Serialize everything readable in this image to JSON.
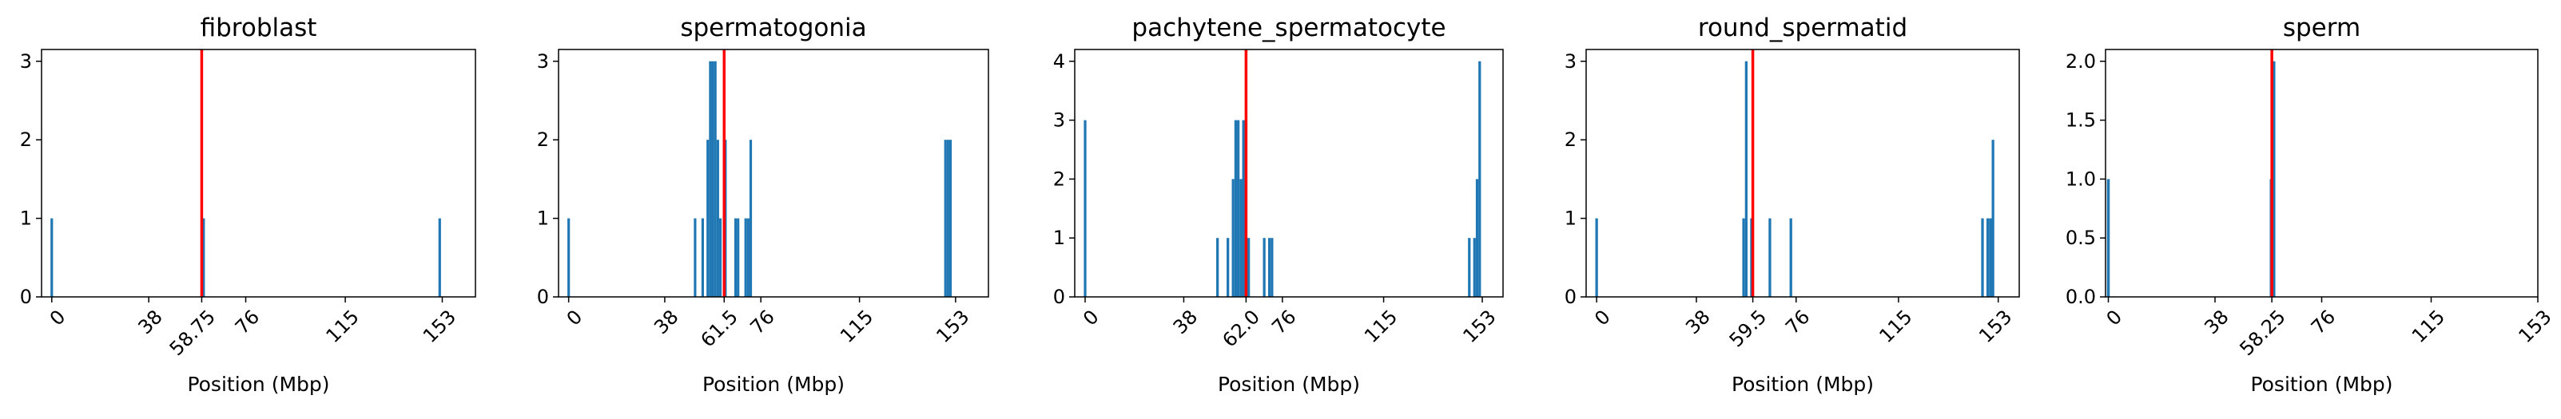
{
  "chart_data": [
    {
      "type": "bar",
      "title": "fibroblast",
      "xlabel": "Position (Mbp)",
      "ylabel": "",
      "xlim": [
        -4,
        166
      ],
      "ylim": [
        0,
        3.15
      ],
      "yticks": [
        "0",
        "1",
        "2",
        "3"
      ],
      "ytick_values": [
        0,
        1,
        2,
        3
      ],
      "xticks": [
        "0",
        "38",
        "58.75",
        "76",
        "115",
        "153"
      ],
      "xtick_values": [
        0,
        38,
        58.75,
        76,
        115,
        153
      ],
      "marker": 58.75,
      "marker_color": "#ff0000",
      "bar_color": "#1f77b4",
      "bars": [
        [
          0,
          1
        ],
        [
          59.5,
          1
        ],
        [
          152,
          1
        ]
      ]
    },
    {
      "type": "bar",
      "title": "spermatogonia",
      "xlabel": "Position (Mbp)",
      "ylabel": "",
      "xlim": [
        -4,
        166
      ],
      "ylim": [
        0,
        3.15
      ],
      "yticks": [
        "0",
        "1",
        "2",
        "3"
      ],
      "ytick_values": [
        0,
        1,
        2,
        3
      ],
      "xticks": [
        "0",
        "38",
        "61.5",
        "76",
        "115",
        "153"
      ],
      "xtick_values": [
        0,
        38,
        61.5,
        76,
        115,
        153
      ],
      "marker": 61.5,
      "marker_color": "#ff0000",
      "bar_color": "#1f77b4",
      "bars": [
        [
          0,
          1
        ],
        [
          50,
          1
        ],
        [
          53,
          1
        ],
        [
          55,
          2
        ],
        [
          56,
          3
        ],
        [
          57,
          3
        ],
        [
          58,
          3
        ],
        [
          59,
          2
        ],
        [
          60,
          1
        ],
        [
          62,
          2
        ],
        [
          66,
          1
        ],
        [
          67,
          1
        ],
        [
          70,
          1
        ],
        [
          71,
          1
        ],
        [
          72,
          2
        ],
        [
          149,
          2
        ],
        [
          150,
          2
        ],
        [
          151,
          2
        ]
      ]
    },
    {
      "type": "bar",
      "title": "pachytene_spermatocyte",
      "xlabel": "Position (Mbp)",
      "ylabel": "",
      "xlim": [
        -4,
        161
      ],
      "ylim": [
        0,
        4.2
      ],
      "yticks": [
        "0",
        "1",
        "2",
        "3",
        "4"
      ],
      "ytick_values": [
        0,
        1,
        2,
        3,
        4
      ],
      "xticks": [
        "0",
        "38",
        "62.0",
        "76",
        "115",
        "153"
      ],
      "xtick_values": [
        0,
        38,
        62.0,
        76,
        115,
        153
      ],
      "marker": 62.0,
      "marker_color": "#ff0000",
      "bar_color": "#1f77b4",
      "bars": [
        [
          0,
          3
        ],
        [
          51,
          1
        ],
        [
          55,
          1
        ],
        [
          57,
          2
        ],
        [
          58,
          3
        ],
        [
          59,
          3
        ],
        [
          60,
          2
        ],
        [
          61,
          3
        ],
        [
          62,
          3
        ],
        [
          63,
          1
        ],
        [
          69,
          1
        ],
        [
          71,
          1
        ],
        [
          72,
          1
        ],
        [
          148,
          1
        ],
        [
          150,
          1
        ],
        [
          151,
          2
        ],
        [
          152,
          4
        ]
      ]
    },
    {
      "type": "bar",
      "title": "round_spermatid",
      "xlabel": "Position (Mbp)",
      "ylabel": "",
      "xlim": [
        -4,
        161
      ],
      "ylim": [
        0,
        3.15
      ],
      "yticks": [
        "0",
        "1",
        "2",
        "3"
      ],
      "ytick_values": [
        0,
        1,
        2,
        3
      ],
      "xticks": [
        "0",
        "38",
        "59.5",
        "76",
        "115",
        "153"
      ],
      "xtick_values": [
        0,
        38,
        59.5,
        76,
        115,
        153
      ],
      "marker": 59.5,
      "marker_color": "#ff0000",
      "bar_color": "#1f77b4",
      "bars": [
        [
          0,
          1
        ],
        [
          56,
          1
        ],
        [
          57,
          3
        ],
        [
          59,
          1
        ],
        [
          66,
          1
        ],
        [
          74,
          1
        ],
        [
          147,
          1
        ],
        [
          149,
          1
        ],
        [
          150,
          1
        ],
        [
          151,
          2
        ]
      ]
    },
    {
      "type": "bar",
      "title": "sperm",
      "xlabel": "Position (Mbp)",
      "ylabel": "",
      "xlim": [
        -1,
        153
      ],
      "ylim": [
        0,
        2.1
      ],
      "yticks": [
        "0.0",
        "0.5",
        "1.0",
        "1.5",
        "2.0"
      ],
      "ytick_values": [
        0,
        0.5,
        1.0,
        1.5,
        2.0
      ],
      "xticks": [
        "0",
        "38",
        "58.25",
        "76",
        "115",
        "153"
      ],
      "xtick_values": [
        0,
        38,
        58.25,
        76,
        115,
        153
      ],
      "marker": 58.25,
      "marker_color": "#ff0000",
      "bar_color": "#1f77b4",
      "bars": [
        [
          0,
          1
        ],
        [
          58,
          1
        ],
        [
          59,
          2
        ]
      ]
    }
  ]
}
